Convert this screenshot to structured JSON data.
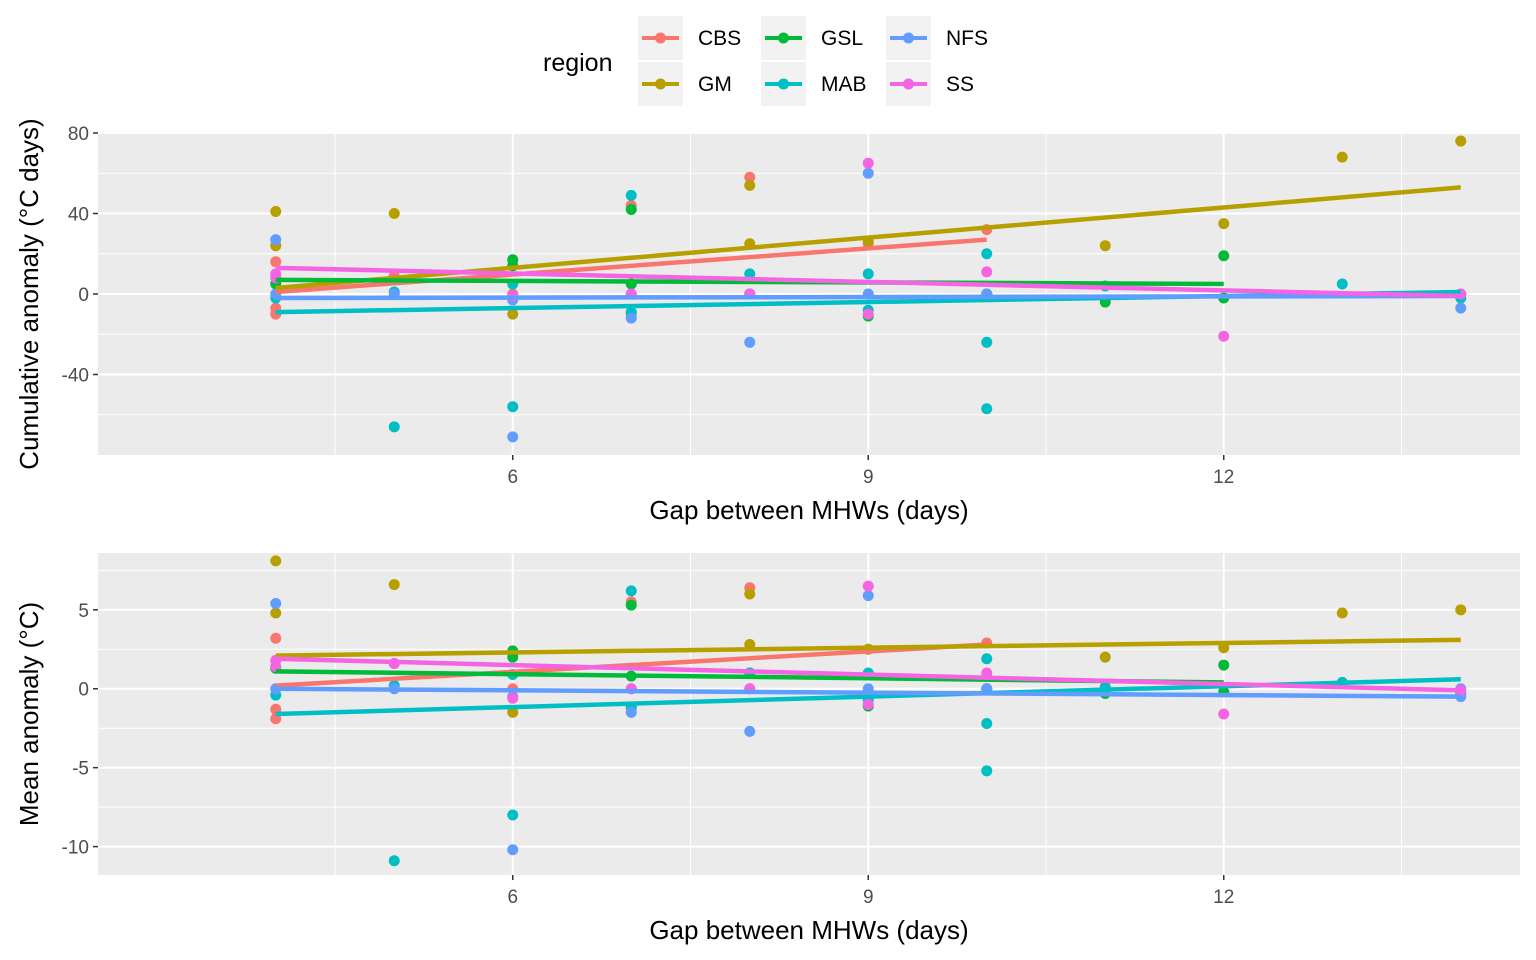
{
  "legend": {
    "title": "region",
    "entries": [
      {
        "name": "CBS",
        "color": "#F8766D"
      },
      {
        "name": "GSL",
        "color": "#00BA38"
      },
      {
        "name": "NFS",
        "color": "#619CFF"
      },
      {
        "name": "GM",
        "color": "#B79F00"
      },
      {
        "name": "MAB",
        "color": "#00BFC4"
      },
      {
        "name": "SS",
        "color": "#F564E3"
      }
    ]
  },
  "chart_data": [
    {
      "type": "scatter",
      "xlabel": "Gap between MHWs (days)",
      "ylabel": "Cumulative anomaly (°C days)",
      "xlim": [
        2.5,
        14.5
      ],
      "ylim": [
        -80,
        80
      ],
      "xticks": [
        6,
        9,
        12
      ],
      "yticks": [
        -40,
        0,
        40,
        80
      ],
      "grid": true,
      "series": [
        {
          "name": "CBS",
          "points": [
            [
              4,
              16
            ],
            [
              4,
              -7
            ],
            [
              4,
              -10
            ],
            [
              5,
              9
            ],
            [
              6,
              0
            ],
            [
              7,
              44
            ],
            [
              8,
              58
            ],
            [
              9,
              25
            ],
            [
              10,
              32
            ]
          ],
          "fit": [
            [
              4,
              1
            ],
            [
              10,
              27
            ]
          ]
        },
        {
          "name": "GM",
          "points": [
            [
              4,
              41
            ],
            [
              4,
              24
            ],
            [
              5,
              40
            ],
            [
              6,
              -10
            ],
            [
              7,
              -10
            ],
            [
              8,
              54
            ],
            [
              8,
              25
            ],
            [
              9,
              26
            ],
            [
              10,
              0
            ],
            [
              11,
              24
            ],
            [
              12,
              35
            ],
            [
              13,
              68
            ],
            [
              14,
              76
            ]
          ],
          "fit": [
            [
              4,
              3
            ],
            [
              14,
              53
            ]
          ]
        },
        {
          "name": "GSL",
          "points": [
            [
              4,
              5
            ],
            [
              6,
              17
            ],
            [
              6,
              14
            ],
            [
              7,
              42
            ],
            [
              7,
              5
            ],
            [
              8,
              0
            ],
            [
              9,
              -11
            ],
            [
              10,
              0
            ],
            [
              11,
              -4
            ],
            [
              12,
              19
            ],
            [
              12,
              -2
            ]
          ],
          "fit": [
            [
              4,
              7
            ],
            [
              12,
              5
            ]
          ]
        },
        {
          "name": "MAB",
          "points": [
            [
              4,
              -2
            ],
            [
              5,
              -66
            ],
            [
              5,
              1
            ],
            [
              6,
              -56
            ],
            [
              6,
              5
            ],
            [
              7,
              49
            ],
            [
              7,
              -9
            ],
            [
              8,
              10
            ],
            [
              9,
              10
            ],
            [
              9,
              -8
            ],
            [
              10,
              20
            ],
            [
              10,
              -24
            ],
            [
              10,
              -57
            ],
            [
              11,
              4
            ],
            [
              13,
              5
            ],
            [
              14,
              -2
            ]
          ],
          "fit": [
            [
              4,
              -9
            ],
            [
              14,
              1
            ]
          ]
        },
        {
          "name": "NFS",
          "points": [
            [
              4,
              27
            ],
            [
              4,
              0
            ],
            [
              5,
              0
            ],
            [
              6,
              -71
            ],
            [
              6,
              -3
            ],
            [
              7,
              0
            ],
            [
              7,
              -12
            ],
            [
              8,
              -24
            ],
            [
              8,
              0
            ],
            [
              9,
              60
            ],
            [
              9,
              0
            ],
            [
              10,
              0
            ],
            [
              14,
              -7
            ],
            [
              14,
              0
            ]
          ],
          "fit": [
            [
              4,
              -2
            ],
            [
              14,
              -1
            ]
          ]
        },
        {
          "name": "SS",
          "points": [
            [
              4,
              10
            ],
            [
              4,
              8
            ],
            [
              5,
              7
            ],
            [
              6,
              -1
            ],
            [
              7,
              0
            ],
            [
              8,
              0
            ],
            [
              9,
              65
            ],
            [
              9,
              -10
            ],
            [
              10,
              11
            ],
            [
              12,
              -21
            ],
            [
              14,
              0
            ]
          ],
          "fit": [
            [
              4,
              13
            ],
            [
              14,
              -1
            ]
          ]
        }
      ]
    },
    {
      "type": "scatter",
      "xlabel": "Gap between MHWs (days)",
      "ylabel": "Mean anomaly (°C)",
      "xlim": [
        2.5,
        14.5
      ],
      "ylim": [
        -11.8,
        8.6
      ],
      "xticks": [
        6,
        9,
        12
      ],
      "yticks": [
        -10,
        -5,
        0,
        5
      ],
      "grid": true,
      "series": [
        {
          "name": "CBS",
          "points": [
            [
              4,
              3.2
            ],
            [
              4,
              -1.3
            ],
            [
              4,
              -1.9
            ],
            [
              5,
              1.6
            ],
            [
              6,
              0
            ],
            [
              7,
              5.5
            ],
            [
              8,
              6.4
            ],
            [
              9,
              2.5
            ],
            [
              10,
              2.9
            ]
          ],
          "fit": [
            [
              4,
              0.2
            ],
            [
              10,
              2.8
            ]
          ]
        },
        {
          "name": "GM",
          "points": [
            [
              4,
              8.1
            ],
            [
              4,
              4.8
            ],
            [
              5,
              6.6
            ],
            [
              6,
              -1.5
            ],
            [
              7,
              -1.2
            ],
            [
              8,
              6.0
            ],
            [
              8,
              2.8
            ],
            [
              9,
              2.5
            ],
            [
              10,
              0
            ],
            [
              11,
              2.0
            ],
            [
              12,
              2.6
            ],
            [
              13,
              4.8
            ],
            [
              14,
              5.0
            ]
          ],
          "fit": [
            [
              4,
              2.1
            ],
            [
              14,
              3.1
            ]
          ]
        },
        {
          "name": "GSL",
          "points": [
            [
              4,
              1.3
            ],
            [
              6,
              2.4
            ],
            [
              6,
              2.0
            ],
            [
              7,
              5.3
            ],
            [
              7,
              0.8
            ],
            [
              8,
              1.0
            ],
            [
              9,
              -1.1
            ],
            [
              10,
              0
            ],
            [
              11,
              -0.3
            ],
            [
              12,
              1.5
            ],
            [
              12,
              -0.2
            ]
          ],
          "fit": [
            [
              4,
              1.1
            ],
            [
              12,
              0.4
            ]
          ]
        },
        {
          "name": "MAB",
          "points": [
            [
              4,
              -0.4
            ],
            [
              5,
              -10.9
            ],
            [
              5,
              0.2
            ],
            [
              6,
              -8.0
            ],
            [
              6,
              0.9
            ],
            [
              7,
              6.2
            ],
            [
              7,
              -1.2
            ],
            [
              8,
              1.0
            ],
            [
              9,
              1.0
            ],
            [
              9,
              -0.7
            ],
            [
              10,
              1.9
            ],
            [
              10,
              -2.2
            ],
            [
              10,
              -5.2
            ],
            [
              11,
              0.1
            ],
            [
              13,
              0.4
            ],
            [
              14,
              -0.3
            ]
          ],
          "fit": [
            [
              4,
              -1.6
            ],
            [
              14,
              0.6
            ]
          ]
        },
        {
          "name": "NFS",
          "points": [
            [
              4,
              5.4
            ],
            [
              4,
              0
            ],
            [
              5,
              0
            ],
            [
              6,
              -10.2
            ],
            [
              6,
              -0.5
            ],
            [
              7,
              0
            ],
            [
              7,
              -1.5
            ],
            [
              8,
              -2.7
            ],
            [
              8,
              0
            ],
            [
              9,
              5.9
            ],
            [
              9,
              0
            ],
            [
              10,
              0
            ],
            [
              14,
              -0.5
            ],
            [
              14,
              0
            ]
          ],
          "fit": [
            [
              4,
              0
            ],
            [
              14,
              -0.5
            ]
          ]
        },
        {
          "name": "SS",
          "points": [
            [
              4,
              1.8
            ],
            [
              4,
              1.4
            ],
            [
              5,
              1.6
            ],
            [
              6,
              -0.6
            ],
            [
              7,
              0
            ],
            [
              8,
              0
            ],
            [
              9,
              6.5
            ],
            [
              9,
              -1.0
            ],
            [
              10,
              1.0
            ],
            [
              12,
              -1.6
            ],
            [
              14,
              -0.1
            ]
          ],
          "fit": [
            [
              4,
              1.9
            ],
            [
              14,
              -0.1
            ]
          ]
        }
      ]
    }
  ]
}
